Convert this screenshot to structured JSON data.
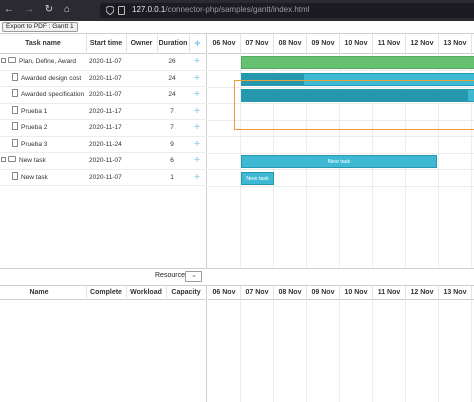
{
  "browser": {
    "host": "127.0.0.1",
    "path": "/connector-php/samples/gantt/index.html",
    "nav_back": "←",
    "nav_forward": "→",
    "nav_reload": "↻",
    "nav_home": "⌂"
  },
  "toolbar": {
    "export_label": "Export to PDF : Gantt 1"
  },
  "grid": {
    "columns": {
      "name": "Task name",
      "start": "Start time",
      "owner": "Owner",
      "duration": "Duration",
      "add": "+"
    },
    "tasks": [
      {
        "name": "Plan, Define, Award",
        "start": "2020-11-07",
        "duration": "26",
        "type": "project",
        "add": "+"
      },
      {
        "name": "Awarded design cost",
        "start": "2020-11-07",
        "duration": "24",
        "type": "task",
        "add": "+"
      },
      {
        "name": "Awarded specification",
        "start": "2020-11-07",
        "duration": "24",
        "type": "task",
        "add": "+"
      },
      {
        "name": "Prueba 1",
        "start": "2020-11-17",
        "duration": "7",
        "type": "task",
        "add": "+"
      },
      {
        "name": "Prueba 2",
        "start": "2020-11-17",
        "duration": "7",
        "type": "task",
        "add": "+"
      },
      {
        "name": "Prueba 3",
        "start": "2020-11-24",
        "duration": "9",
        "type": "task",
        "add": "+"
      },
      {
        "name": "New task",
        "start": "2020-11-07",
        "duration": "6",
        "type": "project",
        "add": "+"
      },
      {
        "name": "New task",
        "start": "2020-11-07",
        "duration": "1",
        "type": "task",
        "add": "+"
      }
    ]
  },
  "scale": {
    "days": [
      "06 Nov",
      "07 Nov",
      "08 Nov",
      "09 Nov",
      "10 Nov",
      "11 Nov",
      "12 Nov",
      "13 Nov"
    ]
  },
  "bars": {
    "new_task_project_label": "New task",
    "new_task_label": "New task"
  },
  "resource": {
    "label": "Resource",
    "select_arrow": "⌄",
    "columns": {
      "name": "Name",
      "complete": "Complete",
      "workload": "Workload",
      "capacity": "Capacity"
    }
  },
  "colors": {
    "project_bar": "#65c16f",
    "task_bar": "#3db9d3",
    "progress": "#2598ae",
    "selection": "#f0a030"
  }
}
